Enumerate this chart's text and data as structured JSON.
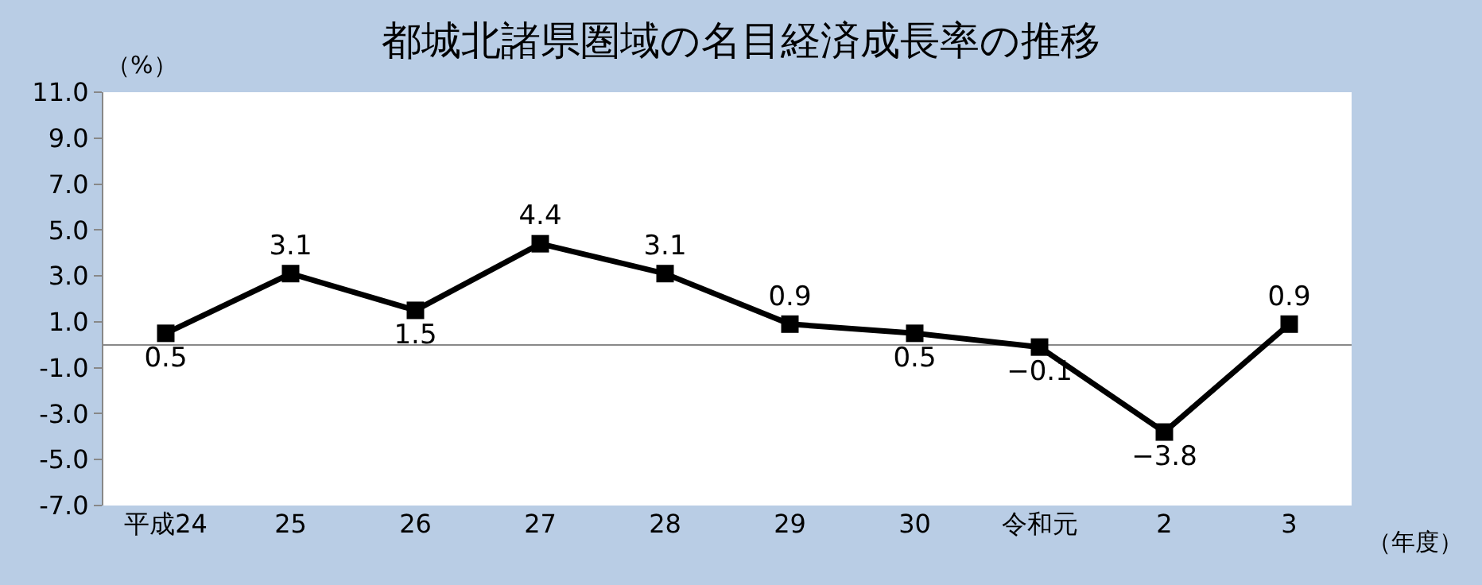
{
  "chart_data": {
    "type": "line",
    "title": "都城北諸県圏域の名目経済成長率の推移",
    "ylabel": "（%）",
    "xlabel": "（年度）",
    "categories": [
      "平成24",
      "25",
      "26",
      "27",
      "28",
      "29",
      "30",
      "令和元",
      "2",
      "3"
    ],
    "series": [
      {
        "color": "#000000",
        "values": [
          0.5,
          3.1,
          1.5,
          4.4,
          3.1,
          0.9,
          0.5,
          -0.1,
          -3.8,
          0.9
        ]
      }
    ],
    "ylim": [
      -7,
      11
    ],
    "yticks": [
      {
        "value": -7,
        "label": "-7.0"
      },
      {
        "value": -5,
        "label": "-5.0"
      },
      {
        "value": -3,
        "label": "-3.0"
      },
      {
        "value": -1,
        "label": "-1.0"
      },
      {
        "value": 1,
        "label": "1.0"
      },
      {
        "value": 3,
        "label": "3.0"
      },
      {
        "value": 5,
        "label": "5.0"
      },
      {
        "value": 7,
        "label": "7.0"
      },
      {
        "value": 9,
        "label": "9.0"
      },
      {
        "value": 11,
        "label": "11.0"
      }
    ],
    "data_labels": true,
    "marker": "square",
    "line_style": "solid"
  }
}
